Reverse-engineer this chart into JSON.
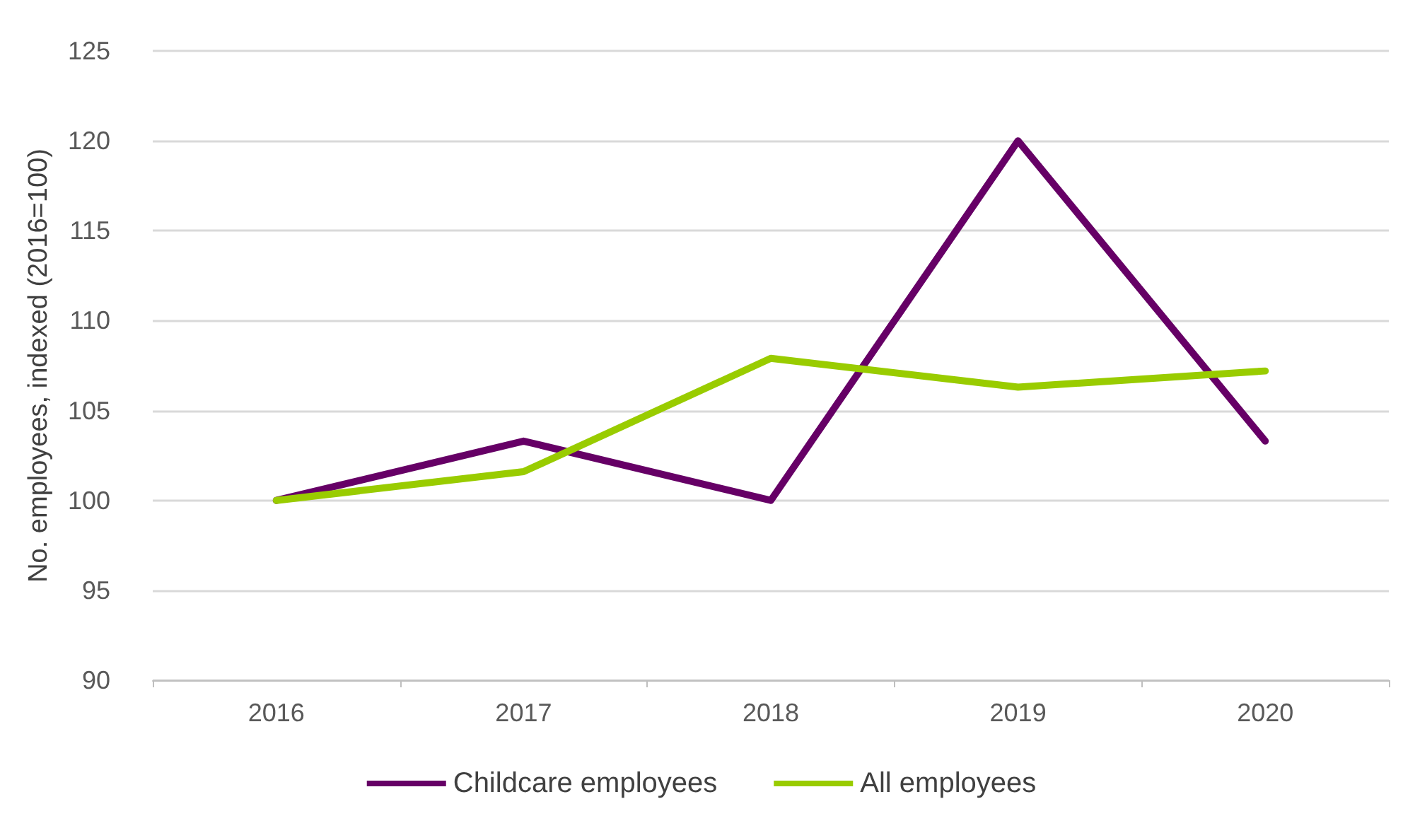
{
  "chart_data": {
    "type": "line",
    "ylabel": "No. employees, indexed (2016=100)",
    "categories": [
      "2016",
      "2017",
      "2018",
      "2019",
      "2020"
    ],
    "series": [
      {
        "name": "Childcare employees",
        "color": "#660066",
        "values": [
          100,
          103.3,
          100,
          120,
          103.3
        ]
      },
      {
        "name": "All employees",
        "color": "#99cc00",
        "values": [
          100,
          101.6,
          107.9,
          106.3,
          107.2
        ]
      }
    ],
    "ylim": [
      90,
      125
    ],
    "yticks": [
      90,
      95,
      100,
      105,
      110,
      115,
      120,
      125
    ],
    "grid": "y",
    "legend": "bottom",
    "marker": "none"
  }
}
